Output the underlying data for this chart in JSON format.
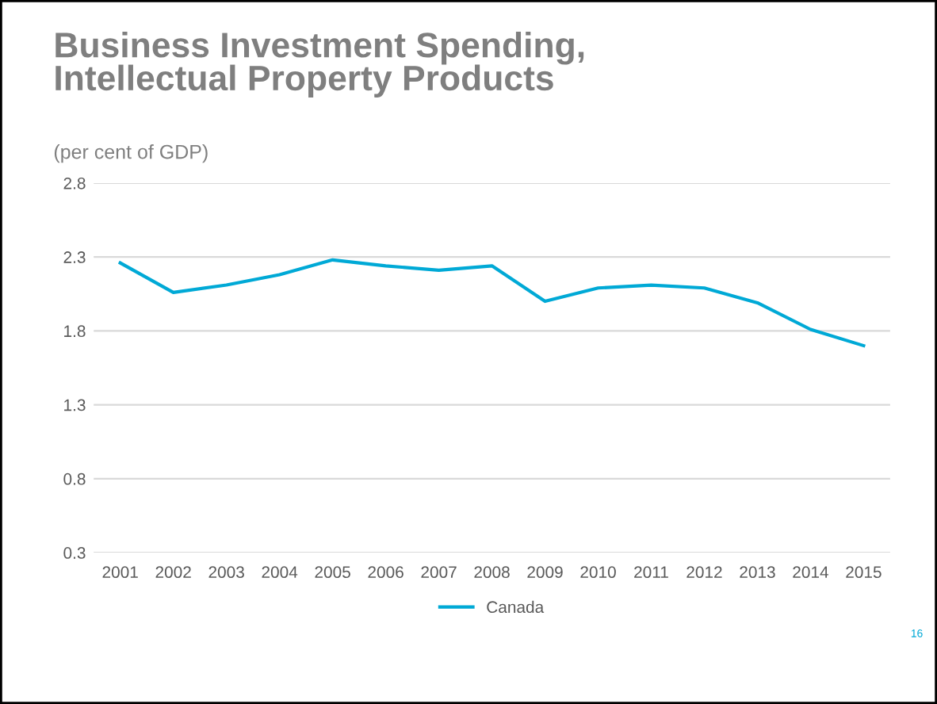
{
  "chart_data": {
    "type": "line",
    "title": "Business Investment Spending,\nIntellectual Property Products",
    "subtitle": "(per cent of GDP)",
    "categories": [
      "2001",
      "2002",
      "2003",
      "2004",
      "2005",
      "2006",
      "2007",
      "2008",
      "2009",
      "2010",
      "2011",
      "2012",
      "2013",
      "2014",
      "2015"
    ],
    "series": [
      {
        "name": "Canada",
        "color": "#00a9d6",
        "values": [
          2.26,
          2.06,
          2.11,
          2.18,
          2.28,
          2.24,
          2.21,
          2.24,
          2.0,
          2.09,
          2.11,
          2.09,
          1.99,
          1.81,
          1.7
        ]
      }
    ],
    "ylim": [
      0.3,
      2.8
    ],
    "yticks": [
      0.3,
      0.8,
      1.3,
      1.8,
      2.3,
      2.8
    ],
    "grid": "y",
    "legend": "bottom",
    "marker": "none",
    "line_style": "solid",
    "annotations": [
      "16"
    ]
  }
}
